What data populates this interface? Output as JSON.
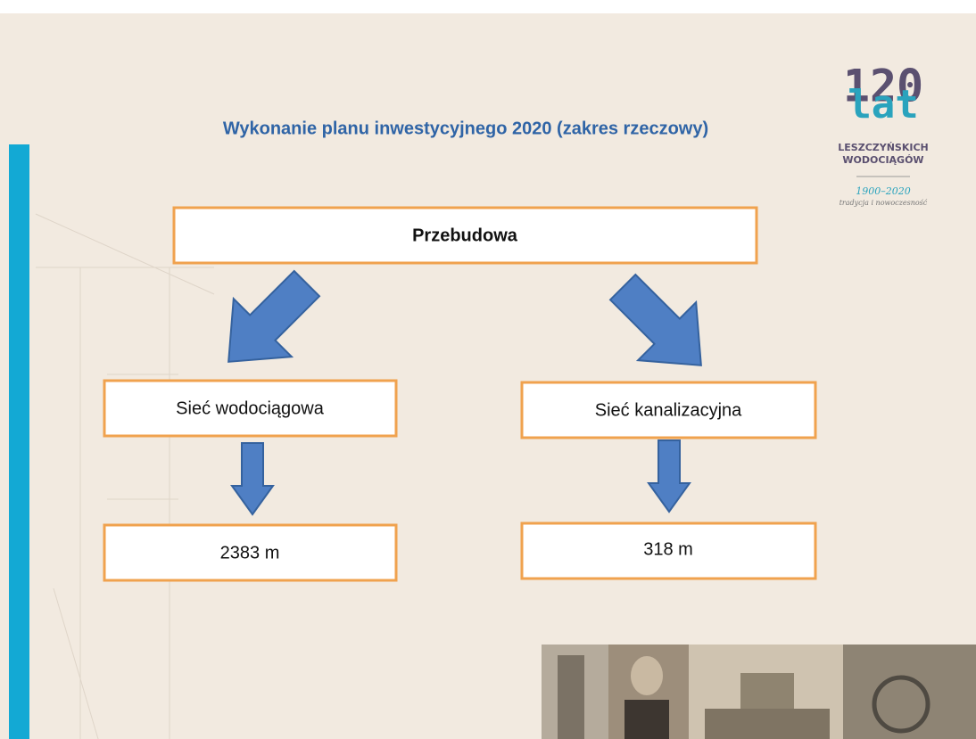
{
  "header": {
    "title": "Wykonanie planu inwestycyjnego 2020 (zakres rzeczowy)"
  },
  "logo": {
    "number": "120",
    "word": "lat",
    "line1": "LESZCZYŃSKICH",
    "line2": "WODOCIĄGÓW",
    "years": "1900–2020",
    "motto": "tradycja i nowoczesność"
  },
  "nodes": [
    {
      "label": "Przebudowa"
    },
    {
      "label": "Sieć wodociągowa"
    },
    {
      "label": "Sieć kanalizacyjna"
    },
    {
      "label": "2383 m"
    },
    {
      "label": "318 m"
    }
  ]
}
